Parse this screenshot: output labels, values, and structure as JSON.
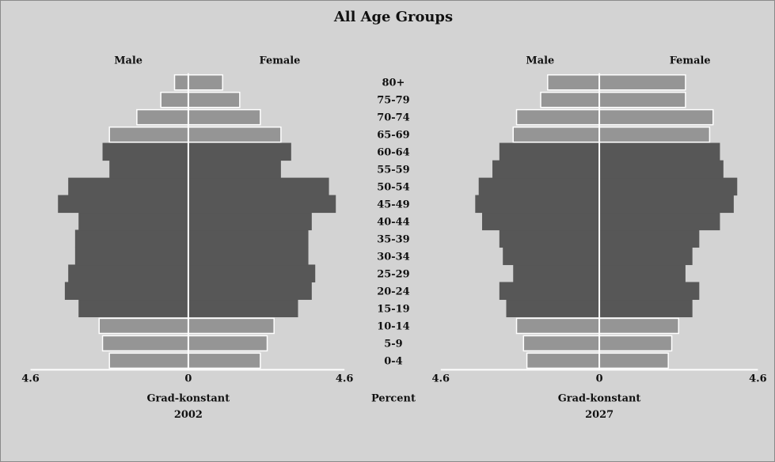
{
  "chart_data": [
    {
      "type": "bar",
      "orientation": "horizontal",
      "subtype": "population-pyramid",
      "title": "All Age Groups",
      "categories": [
        "0-4",
        "5-9",
        "10-14",
        "15-19",
        "20-24",
        "25-29",
        "30-34",
        "35-39",
        "40-44",
        "45-49",
        "50-54",
        "55-59",
        "60-64",
        "65-69",
        "70-74",
        "75-79",
        "80+"
      ],
      "series": [
        {
          "name": "Male",
          "values": [
            2.3,
            2.5,
            2.6,
            3.2,
            3.6,
            3.5,
            3.3,
            3.3,
            3.2,
            3.8,
            3.5,
            2.3,
            2.5,
            2.3,
            1.5,
            0.8,
            0.4
          ]
        },
        {
          "name": "Female",
          "values": [
            2.1,
            2.3,
            2.5,
            3.2,
            3.6,
            3.7,
            3.5,
            3.5,
            3.6,
            4.3,
            4.1,
            2.7,
            3.0,
            2.7,
            2.1,
            1.5,
            1.0
          ]
        }
      ],
      "xlim": [
        -4.6,
        4.6
      ],
      "x_tick_labels": [
        "4.6",
        "0",
        "4.6"
      ],
      "xlabel": "Grad-konstant",
      "subtitle": "2002",
      "unit_label": "Percent",
      "legend": [
        "Male",
        "Female"
      ]
    },
    {
      "type": "bar",
      "orientation": "horizontal",
      "subtype": "population-pyramid",
      "categories": [
        "0-4",
        "5-9",
        "10-14",
        "15-19",
        "20-24",
        "25-29",
        "30-34",
        "35-39",
        "40-44",
        "45-49",
        "50-54",
        "55-59",
        "60-64",
        "65-69",
        "70-74",
        "75-79",
        "80+"
      ],
      "series": [
        {
          "name": "Male",
          "values": [
            2.1,
            2.2,
            2.4,
            2.7,
            2.9,
            2.5,
            2.8,
            2.9,
            3.4,
            3.6,
            3.5,
            3.1,
            2.9,
            2.5,
            2.4,
            1.7,
            1.5
          ]
        },
        {
          "name": "Female",
          "values": [
            2.0,
            2.1,
            2.3,
            2.7,
            2.9,
            2.5,
            2.7,
            2.9,
            3.5,
            3.9,
            4.0,
            3.6,
            3.5,
            3.2,
            3.3,
            2.5,
            2.5
          ]
        }
      ],
      "xlim": [
        -4.6,
        4.6
      ],
      "x_tick_labels": [
        "4.6",
        "0",
        "4.6"
      ],
      "xlabel": "Grad-konstant",
      "subtitle": "2027",
      "legend": [
        "Male",
        "Female"
      ]
    }
  ],
  "colors": {
    "background": "#d3d3d3",
    "bar_dark": "#575757",
    "bar_light": "#959595",
    "bar_outline": "#ffffff"
  }
}
